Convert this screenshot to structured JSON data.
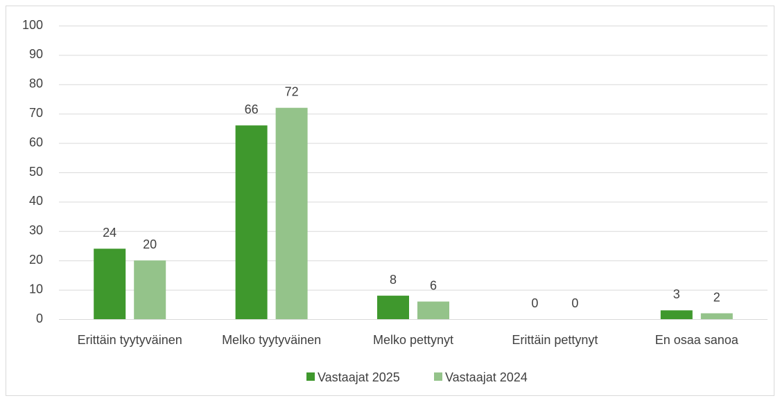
{
  "chart_data": {
    "type": "bar",
    "categories": [
      "Erittäin tyytyväinen",
      "Melko tyytyväinen",
      "Melko pettynyt",
      "Erittäin pettynyt",
      "En osaa sanoa"
    ],
    "series": [
      {
        "name": "Vastaajat 2025",
        "color": "#3f982d",
        "values": [
          24,
          66,
          8,
          0,
          3
        ]
      },
      {
        "name": "Vastaajat 2024",
        "color": "#94c38a",
        "values": [
          20,
          72,
          6,
          0,
          2
        ]
      }
    ],
    "ylim": [
      0,
      100
    ],
    "yticks": [
      0,
      10,
      20,
      30,
      40,
      50,
      60,
      70,
      80,
      90,
      100
    ],
    "grid": true,
    "legend": "bottom"
  }
}
